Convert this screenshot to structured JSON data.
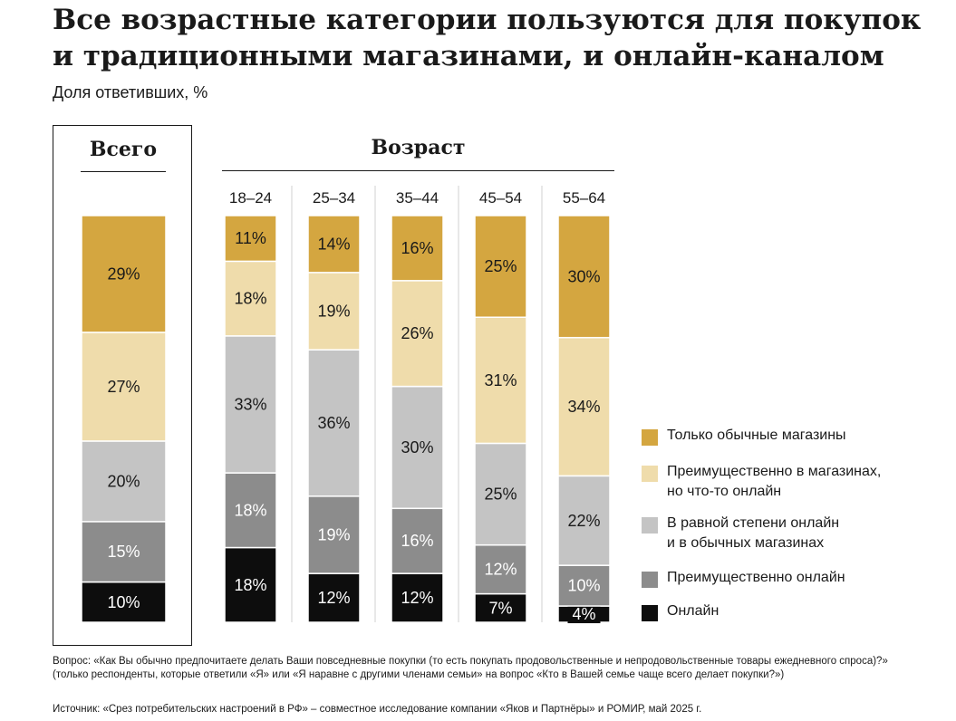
{
  "header": {
    "title": "Все возрастные категории пользуются для покупок и традиционными магазинами, и онлайн-каналом",
    "subtitle": "Доля ответивших, %"
  },
  "groups": {
    "total_label": "Всего",
    "age_label": "Возраст"
  },
  "chart_data": {
    "type": "bar",
    "stacked": true,
    "categories": [
      "Всего",
      "18–24",
      "25–34",
      "35–44",
      "45–54",
      "55–64"
    ],
    "series": [
      {
        "name": "Онлайн",
        "color": "#0d0d0d",
        "values": [
          10,
          18,
          12,
          12,
          7,
          4
        ]
      },
      {
        "name": "Преимущественно онлайн",
        "color": "#8c8c8c",
        "values": [
          15,
          18,
          19,
          16,
          12,
          10
        ]
      },
      {
        "name": "В равной степени онлайн\nи в обычных магазинах",
        "color": "#c4c4c4",
        "values": [
          20,
          33,
          36,
          30,
          25,
          22
        ]
      },
      {
        "name": "Преимущественно в магазинах,\nно что-то онлайн",
        "color": "#efdcab",
        "values": [
          27,
          18,
          19,
          26,
          31,
          34
        ]
      },
      {
        "name": "Только обычные магазины",
        "color": "#d4a640",
        "values": [
          29,
          11,
          14,
          16,
          25,
          30
        ]
      }
    ],
    "ylim": [
      0,
      100
    ],
    "value_suffix": "%",
    "legend_position": "right"
  },
  "legend": {
    "order": [
      4,
      3,
      2,
      1,
      0
    ]
  },
  "footnote": "Вопрос: «Как Вы обычно предпочитаете делать Ваши повседневные покупки (то есть покупать продовольственные и непродовольственные товары ежедневного спроса)?» (только респонденты, которые ответили «Я» или «Я наравне с другими членами семьи» на вопрос «Кто в Вашей семье чаще всего делает покупки?»)",
  "source": "Источник: «Срез потребительских настроений в РФ» – совместное исследование компании «Яков и Партнёры» и РОМИР, май 2025 г."
}
